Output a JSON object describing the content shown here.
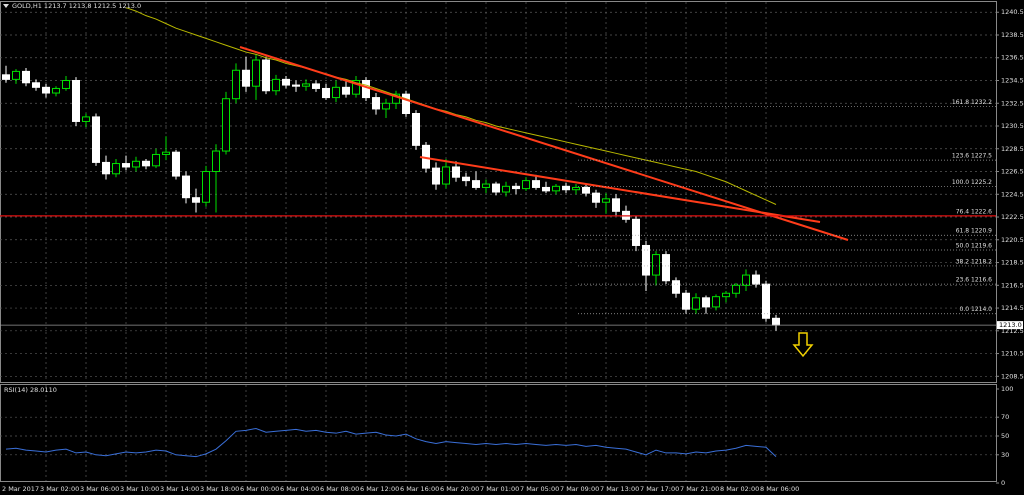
{
  "chart_data": {
    "type": "candlestick",
    "title": "GOLD,H1  1213.7 1213.8 1212.5 1213.0",
    "categories": [
      "2 Mar 2017",
      null,
      null,
      null,
      "3 Mar 02:00",
      null,
      null,
      null,
      "3 Mar 06:00",
      null,
      null,
      null,
      "3 Mar 10:00",
      null,
      null,
      null,
      "3 Mar 14:00",
      null,
      null,
      null,
      "3 Mar 18:00",
      null,
      null,
      null,
      "6 Mar 00:00",
      null,
      null,
      null,
      "6 Mar 04:00",
      null,
      null,
      null,
      "6 Mar 08:00",
      null,
      null,
      null,
      "6 Mar 12:00",
      null,
      null,
      null,
      "6 Mar 16:00",
      null,
      null,
      null,
      "6 Mar 20:00",
      null,
      null,
      null,
      "7 Mar 01:00",
      null,
      null,
      null,
      "7 Mar 05:00",
      null,
      null,
      null,
      "7 Mar 09:00",
      null,
      null,
      null,
      "7 Mar 13:00",
      null,
      null,
      null,
      "7 Mar 17:00",
      null,
      null,
      null,
      "7 Mar 21:00",
      null,
      null,
      null,
      "8 Mar 02:00",
      null,
      null,
      null,
      "8 Mar 06:00",
      null
    ],
    "open": [
      1235.0,
      1234.6,
      1235.3,
      1234.3,
      1233.9,
      1233.4,
      1233.8,
      1234.5,
      1230.9,
      1231.3,
      1227.3,
      1226.3,
      1227.2,
      1226.9,
      1227.4,
      1227.0,
      1228.0,
      1228.2,
      1226.1,
      1224.2,
      1223.8,
      1226.5,
      1228.3,
      1232.9,
      1235.4,
      1234.0,
      1236.3,
      1233.6,
      1234.6,
      1234.1,
      1234.0,
      1234.2,
      1233.8,
      1233.0,
      1233.9,
      1233.3,
      1234.5,
      1233.0,
      1232.0,
      1232.5,
      1233.3,
      1231.6,
      1228.8,
      1226.8,
      1225.4,
      1226.9,
      1226.0,
      1225.7,
      1225.1,
      1225.4,
      1224.7,
      1225.2,
      1225.0,
      1225.7,
      1225.1,
      1224.8,
      1225.2,
      1224.9,
      1225.1,
      1224.6,
      1223.8,
      1224.1,
      1223.0,
      1222.3,
      1220.0,
      1217.4,
      1219.2,
      1216.9,
      1215.8,
      1214.4,
      1215.4,
      1214.6,
      1215.5,
      1215.8,
      1216.5,
      1217.4,
      1216.6,
      1213.6
    ],
    "high": [
      1235.8,
      1235.5,
      1235.6,
      1234.6,
      1234.2,
      1234.0,
      1234.9,
      1234.8,
      1231.6,
      1231.6,
      1227.9,
      1227.6,
      1227.9,
      1227.8,
      1227.6,
      1228.5,
      1229.6,
      1228.4,
      1226.5,
      1225.0,
      1227.0,
      1228.9,
      1233.5,
      1236.0,
      1236.6,
      1236.8,
      1236.6,
      1235.0,
      1234.9,
      1234.5,
      1234.6,
      1234.5,
      1234.2,
      1234.5,
      1234.6,
      1234.9,
      1234.8,
      1233.4,
      1232.9,
      1233.6,
      1233.6,
      1231.9,
      1229.1,
      1227.3,
      1227.6,
      1227.4,
      1226.4,
      1226.5,
      1225.8,
      1225.6,
      1225.6,
      1225.5,
      1226.0,
      1226.2,
      1225.6,
      1225.4,
      1225.5,
      1225.4,
      1225.4,
      1224.9,
      1224.6,
      1224.5,
      1223.5,
      1222.6,
      1220.4,
      1219.5,
      1219.5,
      1217.2,
      1216.1,
      1215.8,
      1215.6,
      1215.7,
      1216.0,
      1216.7,
      1217.9,
      1217.8,
      1216.9,
      1213.9
    ],
    "low": [
      1234.3,
      1234.2,
      1234.0,
      1233.6,
      1233.0,
      1233.1,
      1233.6,
      1230.5,
      1230.4,
      1227.0,
      1225.8,
      1226.0,
      1226.6,
      1226.5,
      1226.7,
      1226.8,
      1227.5,
      1225.8,
      1223.7,
      1222.9,
      1223.4,
      1222.9,
      1228.0,
      1232.5,
      1233.5,
      1232.8,
      1233.3,
      1233.2,
      1233.8,
      1233.5,
      1233.6,
      1233.5,
      1232.8,
      1232.6,
      1233.0,
      1233.0,
      1232.7,
      1231.5,
      1231.2,
      1232.0,
      1231.3,
      1228.4,
      1226.4,
      1224.9,
      1225.0,
      1225.6,
      1225.2,
      1224.9,
      1224.6,
      1224.4,
      1224.3,
      1224.5,
      1224.8,
      1224.9,
      1224.6,
      1224.5,
      1224.6,
      1224.5,
      1224.3,
      1223.3,
      1222.8,
      1222.6,
      1222.0,
      1219.5,
      1216.0,
      1216.5,
      1216.6,
      1215.4,
      1214.0,
      1214.0,
      1214.0,
      1214.3,
      1215.0,
      1215.4,
      1216.0,
      1216.3,
      1213.3,
      1212.5
    ],
    "close": [
      1234.6,
      1235.3,
      1234.3,
      1233.9,
      1233.4,
      1233.8,
      1234.5,
      1230.9,
      1231.3,
      1227.3,
      1226.3,
      1227.2,
      1226.9,
      1227.4,
      1227.0,
      1228.0,
      1228.2,
      1226.1,
      1224.2,
      1223.8,
      1226.5,
      1228.3,
      1232.9,
      1235.4,
      1234.0,
      1236.3,
      1233.6,
      1234.6,
      1234.1,
      1234.0,
      1234.2,
      1233.8,
      1233.0,
      1233.9,
      1233.3,
      1234.5,
      1233.0,
      1232.0,
      1232.5,
      1233.3,
      1231.6,
      1228.8,
      1226.8,
      1225.4,
      1226.9,
      1226.0,
      1225.7,
      1225.1,
      1225.4,
      1224.7,
      1225.2,
      1225.0,
      1225.7,
      1225.1,
      1224.8,
      1225.2,
      1224.9,
      1225.1,
      1224.6,
      1223.8,
      1224.1,
      1223.0,
      1222.3,
      1220.0,
      1217.4,
      1219.2,
      1216.9,
      1215.8,
      1214.4,
      1215.4,
      1214.6,
      1215.5,
      1215.8,
      1216.5,
      1217.4,
      1216.6,
      1213.6,
      1213.0
    ],
    "up_color": "#00e000",
    "down_color": "#ffffff",
    "ma": {
      "color": "#b8b800",
      "values": [
        null,
        null,
        null,
        null,
        null,
        null,
        null,
        null,
        null,
        null,
        null,
        null,
        1240.9,
        1240.6,
        1240.2,
        1239.9,
        1239.5,
        1239.1,
        1238.8,
        1238.5,
        1238.2,
        1237.9,
        1237.6,
        1237.3,
        1237.0,
        1236.8,
        1236.5,
        1236.3,
        1236.0,
        1235.8,
        1235.6,
        1235.3,
        1235.1,
        1234.8,
        1234.6,
        1234.3,
        1234.1,
        1233.8,
        1233.5,
        1233.2,
        1232.9,
        1232.6,
        1232.3,
        1232.0,
        1231.8,
        1231.5,
        1231.3,
        1231.0,
        1230.8,
        1230.5,
        1230.3,
        1230.1,
        1229.9,
        1229.7,
        1229.5,
        1229.3,
        1229.1,
        1228.9,
        1228.7,
        1228.5,
        1228.3,
        1228.1,
        1227.9,
        1227.7,
        1227.5,
        1227.3,
        1227.1,
        1226.9,
        1226.7,
        1226.5,
        1226.2,
        1225.9,
        1225.6,
        1225.2,
        1224.8,
        1224.4,
        1224.0,
        1223.6
      ]
    },
    "ylim": [
      1208.0,
      1241.4
    ],
    "yticks": [
      1240.5,
      1238.5,
      1236.5,
      1234.5,
      1232.5,
      1230.5,
      1228.5,
      1226.5,
      1224.5,
      1222.5,
      1220.5,
      1218.5,
      1216.5,
      1214.5,
      1212.5,
      1210.5,
      1208.5
    ],
    "grid": true,
    "last_price": {
      "value": 1213,
      "label": "1213.0"
    },
    "fib": [
      {
        "value": 1232.2,
        "label": "161.8 1232.2"
      },
      {
        "value": 1227.5,
        "label": "123.6 1227.5"
      },
      {
        "value": 1225.2,
        "label": "100.0 1225.2"
      },
      {
        "value": 1222.6,
        "label": "76.4 1222.6"
      },
      {
        "value": 1220.9,
        "label": "61.8 1220.9"
      },
      {
        "value": 1219.6,
        "label": "50.0 1219.6"
      },
      {
        "value": 1218.2,
        "label": "38.2 1218.2"
      },
      {
        "value": 1216.6,
        "label": "23.6 1216.6"
      },
      {
        "value": 1214.0,
        "label": "0.0 1214.0"
      }
    ],
    "rsi": {
      "title": "RSI(14) 28.0110",
      "color": "#3a6fd8",
      "ylim": [
        0,
        100
      ],
      "yticks": [
        100,
        70,
        50,
        30,
        0
      ],
      "values": [
        36,
        37,
        35,
        34,
        33,
        35,
        36,
        32,
        33,
        30,
        29,
        31,
        33,
        32,
        33,
        35,
        34,
        30,
        29,
        28,
        31,
        36,
        45,
        55,
        56,
        58,
        54,
        55,
        56,
        57,
        55,
        56,
        54,
        53,
        55,
        52,
        53,
        54,
        51,
        50,
        52,
        47,
        44,
        42,
        44,
        43,
        42,
        41,
        42,
        41,
        42,
        41,
        42,
        41,
        40,
        41,
        40,
        41,
        39,
        40,
        38,
        37,
        36,
        33,
        30,
        35,
        32,
        32,
        31,
        33,
        32,
        34,
        35,
        37,
        40,
        39,
        38,
        28.011
      ]
    }
  }
}
